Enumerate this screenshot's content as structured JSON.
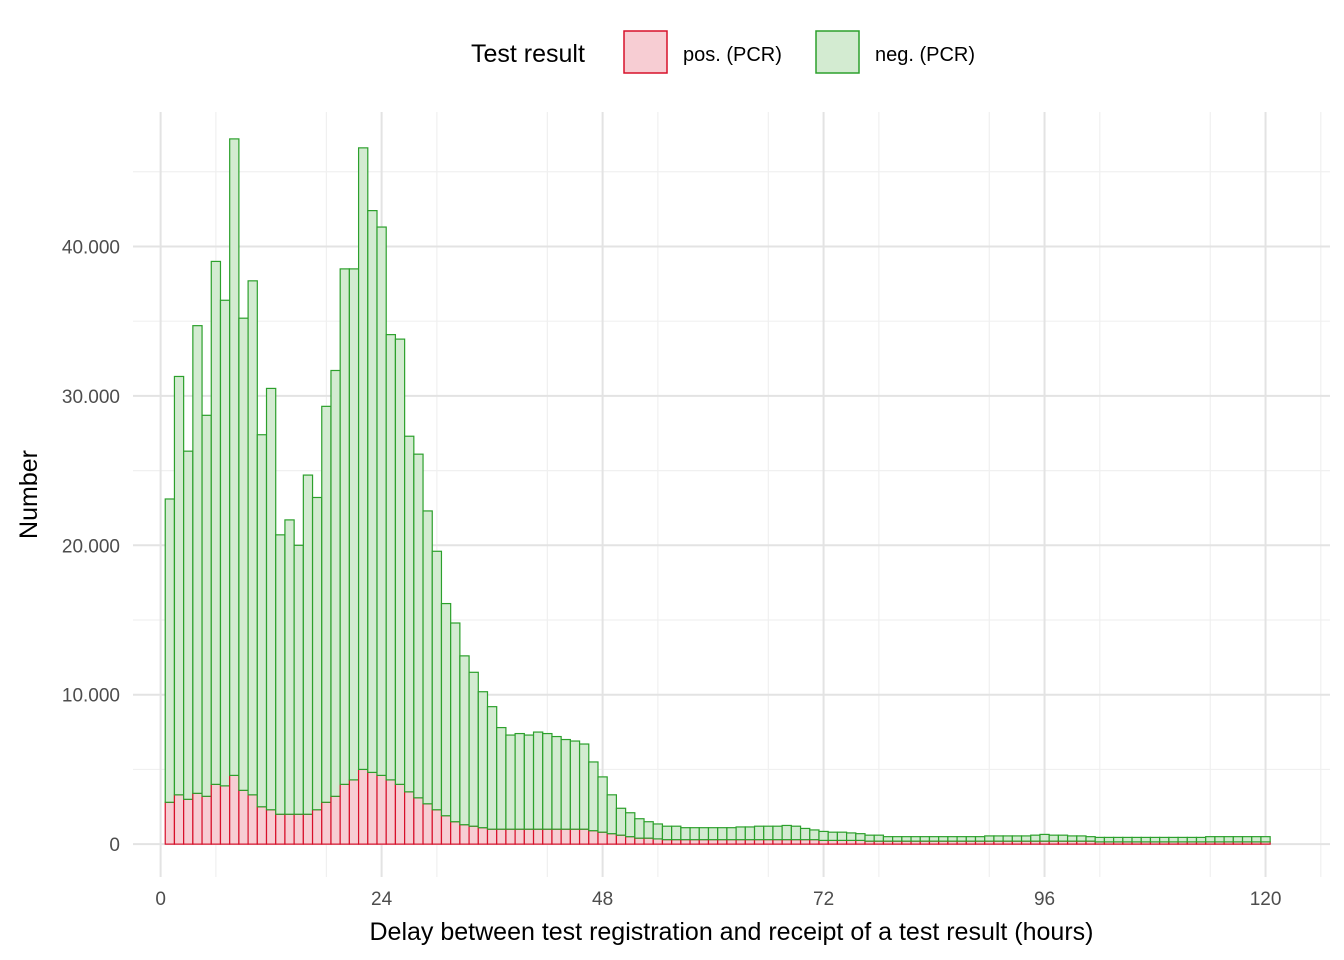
{
  "chart_data": {
    "type": "bar",
    "stacked": true,
    "title": "",
    "xlabel": "Delay between test registration and receipt of a test result (hours)",
    "ylabel": "Number",
    "xlim": [
      -3,
      127
    ],
    "ylim": [
      -2200,
      49000
    ],
    "x_ticks": [
      0,
      24,
      48,
      72,
      96,
      120
    ],
    "x_tick_labels": [
      "0",
      "24",
      "48",
      "72",
      "96",
      "120"
    ],
    "y_ticks": [
      0,
      10000,
      20000,
      30000,
      40000
    ],
    "y_tick_labels": [
      "0",
      "10.000",
      "20.000",
      "30.000",
      "40.000"
    ],
    "grid": true,
    "legend": {
      "title": "Test result",
      "position": "top",
      "entries": [
        "pos. (PCR)",
        "neg. (PCR)"
      ]
    },
    "colors": {
      "pos_fill": "#f7cdd3",
      "pos_stroke": "#d7102a",
      "neg_fill": "#d3ebd1",
      "neg_stroke": "#2ca02c",
      "grid_major": "#e3e3e3",
      "grid_minor": "#f0f0f0"
    },
    "x": [
      1,
      2,
      3,
      4,
      5,
      6,
      7,
      8,
      9,
      10,
      11,
      12,
      13,
      14,
      15,
      16,
      17,
      18,
      19,
      20,
      21,
      22,
      23,
      24,
      25,
      26,
      27,
      28,
      29,
      30,
      31,
      32,
      33,
      34,
      35,
      36,
      37,
      38,
      39,
      40,
      41,
      42,
      43,
      44,
      45,
      46,
      47,
      48,
      49,
      50,
      51,
      52,
      53,
      54,
      55,
      56,
      57,
      58,
      59,
      60,
      61,
      62,
      63,
      64,
      65,
      66,
      67,
      68,
      69,
      70,
      71,
      72,
      73,
      74,
      75,
      76,
      77,
      78,
      79,
      80,
      81,
      82,
      83,
      84,
      85,
      86,
      87,
      88,
      89,
      90,
      91,
      92,
      93,
      94,
      95,
      96,
      97,
      98,
      99,
      100,
      101,
      102,
      103,
      104,
      105,
      106,
      107,
      108,
      109,
      110,
      111,
      112,
      113,
      114,
      115,
      116,
      117,
      118,
      119,
      120
    ],
    "series": [
      {
        "name": "pos. (PCR)",
        "values": [
          2800,
          3300,
          3000,
          3400,
          3200,
          4000,
          3900,
          4600,
          3600,
          3300,
          2500,
          2300,
          2000,
          2000,
          2000,
          2000,
          2300,
          2800,
          3200,
          4000,
          4300,
          5000,
          4800,
          4600,
          4300,
          4000,
          3500,
          3100,
          2700,
          2300,
          1900,
          1500,
          1300,
          1200,
          1100,
          1000,
          1000,
          1000,
          1000,
          1000,
          1000,
          1000,
          1000,
          1000,
          1000,
          1000,
          900,
          800,
          700,
          600,
          500,
          400,
          400,
          350,
          300,
          300,
          300,
          300,
          300,
          300,
          300,
          300,
          300,
          300,
          300,
          300,
          300,
          300,
          300,
          300,
          300,
          250,
          250,
          250,
          250,
          250,
          200,
          200,
          200,
          200,
          200,
          200,
          200,
          200,
          200,
          200,
          200,
          200,
          200,
          200,
          200,
          200,
          200,
          200,
          200,
          200,
          200,
          200,
          200,
          200,
          200,
          150,
          150,
          150,
          150,
          150,
          150,
          150,
          150,
          150,
          150,
          150,
          150,
          150,
          150,
          150,
          150,
          150,
          150,
          150
        ]
      },
      {
        "name": "neg. (PCR)",
        "values": [
          20300,
          28000,
          23300,
          31300,
          25500,
          35000,
          32500,
          42600,
          31600,
          34400,
          24900,
          28200,
          18700,
          19700,
          18000,
          22700,
          20900,
          26500,
          28500,
          34500,
          34200,
          41600,
          37600,
          36700,
          29800,
          29800,
          23800,
          23000,
          19600,
          17300,
          14200,
          13300,
          11300,
          10300,
          9100,
          8200,
          6800,
          6300,
          6400,
          6300,
          6500,
          6400,
          6200,
          6000,
          5900,
          5700,
          4600,
          3700,
          2600,
          1800,
          1600,
          1300,
          1100,
          1000,
          900,
          900,
          800,
          800,
          800,
          800,
          800,
          800,
          850,
          850,
          900,
          900,
          900,
          950,
          900,
          750,
          650,
          600,
          550,
          550,
          500,
          450,
          400,
          400,
          300,
          300,
          300,
          300,
          300,
          300,
          300,
          300,
          300,
          300,
          300,
          350,
          350,
          350,
          350,
          350,
          400,
          450,
          400,
          400,
          350,
          350,
          300,
          300,
          300,
          300,
          300,
          300,
          300,
          300,
          300,
          300,
          300,
          300,
          300,
          350,
          350,
          350,
          350,
          350,
          350,
          350
        ]
      }
    ]
  }
}
